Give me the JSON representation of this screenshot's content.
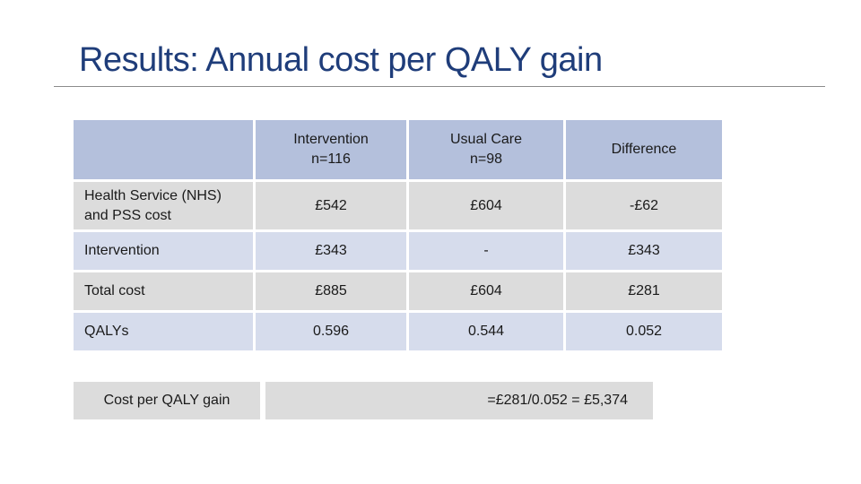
{
  "slide": {
    "title": "Results: Annual cost per QALY gain"
  },
  "table": {
    "headers": {
      "intervention_line1": "Intervention",
      "intervention_line2": "n=116",
      "usual_care_line1": "Usual Care",
      "usual_care_line2": "n=98",
      "difference": "Difference"
    },
    "rows": [
      {
        "label_line1": "Health Service (NHS)",
        "label_line2": "and PSS cost",
        "intervention": "£542",
        "usual_care": "£604",
        "difference": "-£62"
      },
      {
        "label_line1": "Intervention",
        "label_line2": "",
        "intervention": "£343",
        "usual_care": "-",
        "difference": "£343"
      },
      {
        "label_line1": "Total cost",
        "label_line2": "",
        "intervention": "£885",
        "usual_care": "£604",
        "difference": "£281"
      },
      {
        "label_line1": "QALYs",
        "label_line2": "",
        "intervention": "0.596",
        "usual_care": "0.544",
        "difference": "0.052"
      }
    ]
  },
  "summary": {
    "label": "Cost per QALY gain",
    "value": "=£281/0.052 = £5,374"
  }
}
